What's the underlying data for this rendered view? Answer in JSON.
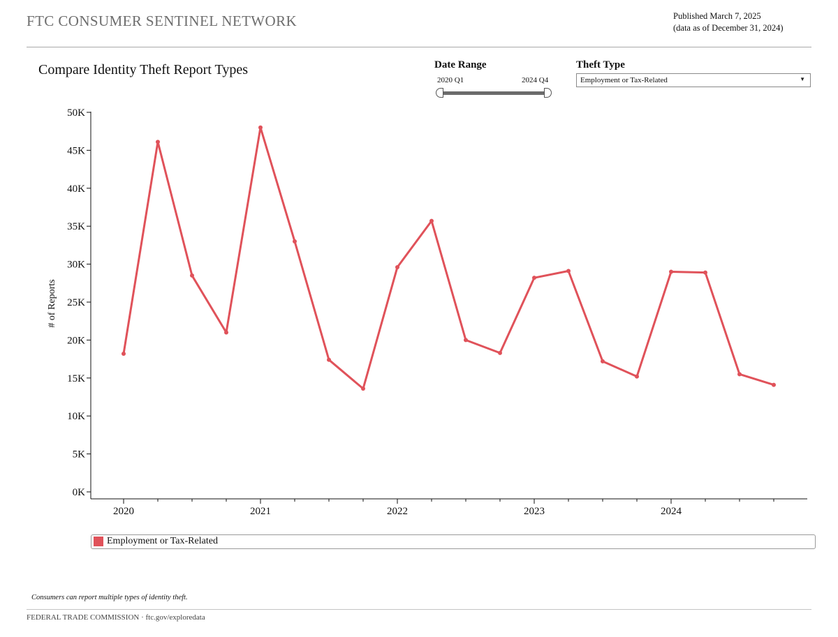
{
  "header": {
    "brand": "FTC CONSUMER SENTINEL NETWORK",
    "published": "Published March 7, 2025",
    "data_as_of": "(data as of December 31, 2024)"
  },
  "controls": {
    "date_range_label": "Date Range",
    "date_range_start": "2020 Q1",
    "date_range_end": "2024 Q4",
    "theft_type_label": "Theft Type",
    "theft_type_selected": "Employment or Tax-Related"
  },
  "legend": {
    "label": "Employment or Tax-Related",
    "color": "#e0525a"
  },
  "footnote": "Consumers can report multiple types of identity theft.",
  "footer": "FEDERAL TRADE COMMISSION · ftc.gov/exploredata",
  "icons": {
    "dropdown": "caret-down-icon"
  },
  "chart_data": {
    "type": "line",
    "title": "Compare Identity Theft Report Types",
    "ylabel": "# of Reports",
    "xlabel": "",
    "x": [
      "2020 Q1",
      "2020 Q2",
      "2020 Q3",
      "2020 Q4",
      "2021 Q1",
      "2021 Q2",
      "2021 Q3",
      "2021 Q4",
      "2022 Q1",
      "2022 Q2",
      "2022 Q3",
      "2022 Q4",
      "2023 Q1",
      "2023 Q2",
      "2023 Q3",
      "2023 Q4",
      "2024 Q1",
      "2024 Q2",
      "2024 Q3",
      "2024 Q4"
    ],
    "x_tick_labels": [
      "2020",
      "2021",
      "2022",
      "2023",
      "2024"
    ],
    "series": [
      {
        "name": "Employment or Tax-Related",
        "color": "#e0525a",
        "values": [
          18200,
          46100,
          28500,
          21000,
          48000,
          33000,
          17400,
          13600,
          29600,
          35700,
          20000,
          18300,
          28200,
          29100,
          17200,
          15200,
          29000,
          28900,
          15500,
          14100
        ]
      }
    ],
    "ylim": [
      0,
      50000
    ],
    "y_ticks": [
      0,
      5000,
      10000,
      15000,
      20000,
      25000,
      30000,
      35000,
      40000,
      45000,
      50000
    ],
    "y_tick_labels": [
      "0K",
      "5K",
      "10K",
      "15K",
      "20K",
      "25K",
      "30K",
      "35K",
      "40K",
      "45K",
      "50K"
    ],
    "grid": false,
    "legend_position": "bottom"
  }
}
